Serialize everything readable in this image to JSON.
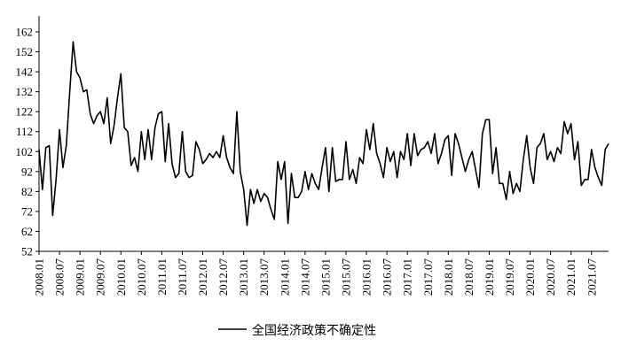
{
  "chart_data": {
    "type": "line",
    "title": "",
    "xlabel": "",
    "ylabel": "",
    "ylim": [
      52,
      170
    ],
    "y_ticks": [
      52,
      62,
      72,
      82,
      92,
      102,
      112,
      122,
      132,
      142,
      152,
      162
    ],
    "x_tick_labels": [
      "2008.01",
      "2008.07",
      "2009.01",
      "2009.07",
      "2010.01",
      "2010.07",
      "2011.01",
      "2011.07",
      "2012.01",
      "2012.07",
      "2013.01",
      "2013.07",
      "2014.01",
      "2014.07",
      "2015.01",
      "2015.07",
      "2016.01",
      "2016.07",
      "2017.01",
      "2017.07",
      "2018.01",
      "2018.07",
      "2019.01",
      "2019.07",
      "2020.01",
      "2020.07",
      "2021.01",
      "2021.07"
    ],
    "x_start": "2008.01",
    "x_end": "2021.12",
    "grid": false,
    "legend_position": "bottom-center",
    "series": [
      {
        "name": "全国经济政策不确定性",
        "color": "#000000",
        "values": [
          103,
          83,
          104,
          105,
          70,
          88,
          113,
          94,
          105,
          132,
          157,
          142,
          139,
          132,
          133,
          121,
          116,
          120,
          122,
          116,
          129,
          106,
          115,
          129,
          141,
          114,
          112,
          95,
          99,
          92,
          112,
          98,
          113,
          98,
          114,
          121,
          122,
          97,
          116,
          96,
          89,
          91,
          112,
          92,
          89,
          90,
          107,
          103,
          96,
          98,
          101,
          99,
          102,
          99,
          110,
          99,
          94,
          91,
          122,
          92,
          83,
          65,
          83,
          76,
          83,
          77,
          81,
          79,
          73,
          68,
          97,
          88,
          97,
          66,
          91,
          79,
          79,
          82,
          92,
          83,
          91,
          86,
          83,
          94,
          104,
          82,
          104,
          87,
          88,
          88,
          107,
          88,
          93,
          86,
          99,
          96,
          113,
          103,
          116,
          101,
          96,
          89,
          104,
          97,
          102,
          89,
          102,
          98,
          111,
          95,
          111,
          100,
          103,
          104,
          107,
          101,
          111,
          96,
          101,
          108,
          110,
          90,
          111,
          106,
          99,
          92,
          98,
          102,
          93,
          84,
          111,
          118,
          118,
          91,
          104,
          86,
          86,
          78,
          92,
          81,
          86,
          82,
          98,
          110,
          94,
          86,
          104,
          106,
          111,
          98,
          102,
          97,
          104,
          101,
          117,
          111,
          116,
          98,
          107,
          85,
          88,
          88,
          103,
          94,
          89,
          85,
          103,
          106
        ]
      }
    ]
  },
  "legend": {
    "label": "全国经济政策不确定性"
  }
}
